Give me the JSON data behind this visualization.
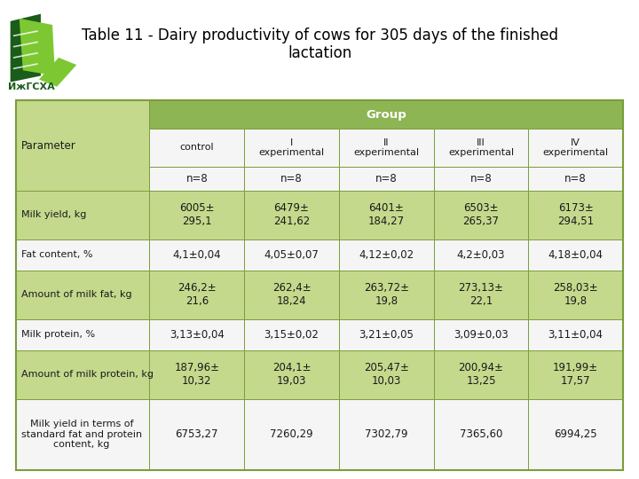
{
  "title_line1": "Table 11 - Dairy productivity of cows for 305 days of the finished",
  "title_line2": "lactation",
  "title_fontsize": 12,
  "bg_color": "#ffffff",
  "header_green": "#8db554",
  "row_light_green": "#c5d98d",
  "row_white": "#f5f5f5",
  "border_color": "#7a9e3b",
  "text_black": "#1a1a1a",
  "header_row2": [
    "Parameter",
    "control",
    "I\nexperimental",
    "II\nexperimental",
    "III\nexperimental",
    "IV\nexperimental"
  ],
  "rows": [
    [
      "Milk yield, kg",
      "6005±\n295,1",
      "6479±\n241,62",
      "6401±\n184,27",
      "6503±\n265,37",
      "6173±\n294,51"
    ],
    [
      "Fat content, %",
      "4,1±0,04",
      "4,05±0,07",
      "4,12±0,02",
      "4,2±0,03",
      "4,18±0,04"
    ],
    [
      "Amount of milk fat, kg",
      "246,2±\n21,6",
      "262,4±\n18,24",
      "263,72±\n19,8",
      "273,13±\n22,1",
      "258,03±\n19,8"
    ],
    [
      "Milk protein, %",
      "3,13±0,04",
      "3,15±0,02",
      "3,21±0,05",
      "3,09±0,03",
      "3,11±0,04"
    ],
    [
      "Amount of milk protein, kg",
      "187,96±\n10,32",
      "204,1±\n19,03",
      "205,47±\n10,03",
      "200,94±\n13,25",
      "191,99±\n17,57"
    ],
    [
      "Milk yield in terms of\nstandard fat and protein\ncontent, kg",
      "6753,27",
      "7260,29",
      "7302,79",
      "7365,60",
      "6994,25"
    ]
  ],
  "figsize": [
    7.2,
    5.4
  ],
  "dpi": 100
}
